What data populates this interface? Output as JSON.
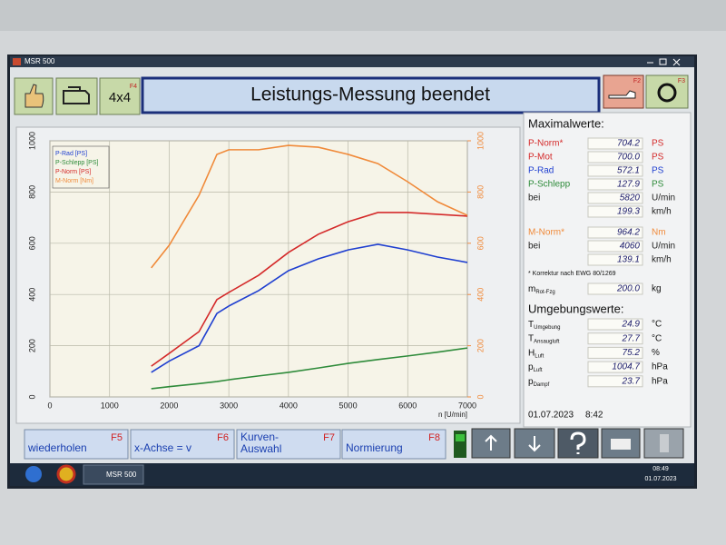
{
  "window": {
    "title": "MSR 500"
  },
  "toolbar": {
    "four_wd": "4x4",
    "four_wd_key": "F4",
    "header": "Leistungs-Messung beendet",
    "left_key": "F2",
    "right_key": "F3"
  },
  "chart_data": {
    "type": "line",
    "x_label": "n [U/min]",
    "x": [
      1700,
      2000,
      2500,
      2800,
      3000,
      3500,
      4000,
      4500,
      5000,
      5500,
      6000,
      6500,
      7000
    ],
    "series": [
      {
        "name": "P-Rad [PS]",
        "color": "#1f3fd0",
        "values": [
          96,
          140,
          200,
          326,
          355,
          415,
          493,
          539,
          574,
          596,
          574,
          546,
          525
        ]
      },
      {
        "name": "P-Schlepp [PS]",
        "color": "#2e8b3a",
        "values": [
          32,
          40,
          52,
          60,
          67,
          82,
          96,
          113,
          131,
          146,
          160,
          175,
          191
        ]
      },
      {
        "name": "P-Norm [PS]",
        "color": "#d42a2a",
        "values": [
          120,
          170,
          255,
          380,
          408,
          475,
          564,
          635,
          684,
          720,
          720,
          713,
          706
        ]
      },
      {
        "name": "M-Norm [Nm]",
        "color": "#f08a3a",
        "axis": "y2",
        "values": [
          504,
          592,
          787,
          947,
          965,
          965,
          982,
          975,
          947,
          911,
          840,
          762,
          709
        ]
      }
    ],
    "xlim": [
      0,
      7000
    ],
    "xticks": [
      0,
      1000,
      2000,
      3000,
      4000,
      5000,
      6000,
      7000
    ],
    "ylim": [
      0,
      1000
    ],
    "yticks": [
      0,
      200,
      400,
      600,
      800,
      1000
    ],
    "y2lim": [
      0,
      1000
    ],
    "y2ticks": [
      0,
      200,
      400,
      600,
      800,
      1000
    ],
    "y2color": "#f08a3a",
    "grid": true,
    "legend": "upper left"
  },
  "panel": {
    "max_title": "Maximalwerte:",
    "power_rows": [
      {
        "label": "P-Norm*",
        "value": "704.2",
        "unit": "PS",
        "color": "#d42a2a"
      },
      {
        "label": "P-Mot",
        "value": "700.0",
        "unit": "PS",
        "color": "#d42a2a"
      },
      {
        "label": "P-Rad",
        "value": "572.1",
        "unit": "PS",
        "color": "#1f3fd0"
      },
      {
        "label": "P-Schlepp",
        "value": "127.9",
        "unit": "PS",
        "color": "#2e8b3a"
      },
      {
        "label": "bei",
        "value": "5820",
        "unit": "U/min",
        "color": "#222222"
      },
      {
        "value": "199.3",
        "unit": "km/h",
        "color": "#222222"
      }
    ],
    "torque_rows": [
      {
        "label": "M-Norm*",
        "value": "964.2",
        "unit": "Nm",
        "color": "#f08a3a"
      },
      {
        "label": "bei",
        "value": "4060",
        "unit": "U/min",
        "color": "#222222"
      },
      {
        "value": "139.1",
        "unit": "km/h",
        "color": "#222222"
      }
    ],
    "note": "* Korrektur nach EWG 80/1269",
    "mass": {
      "main": "m",
      "sub": "Rot-Fzg",
      "value": "200.0",
      "unit": "kg"
    },
    "env_title": "Umgebungswerte:",
    "env_rows": [
      {
        "main": "T",
        "sub": "Umgebung",
        "value": "24.9",
        "unit": "°C"
      },
      {
        "main": "T",
        "sub": "Ansaugluft",
        "value": "27.7",
        "unit": "°C"
      },
      {
        "main": "H",
        "sub": "Luft",
        "value": "75.2",
        "unit": "%"
      },
      {
        "main": "p",
        "sub": "Luft",
        "value": "1004.7",
        "unit": "hPa"
      },
      {
        "main": "p",
        "sub": "Dampf",
        "value": "23.7",
        "unit": "hPa"
      }
    ],
    "date": "01.07.2023",
    "time": "8:42"
  },
  "function_keys": [
    {
      "label": "wiederholen",
      "key": "F5"
    },
    {
      "label": "x-Achse = v",
      "key": "F6"
    },
    {
      "label": "Kurven-",
      "label2": "Auswahl",
      "key": "F7"
    },
    {
      "label": "Normierung",
      "key": "F8"
    }
  ],
  "taskbar": {
    "app": "MSR 500",
    "time": "08:49",
    "date": "01.07.2023"
  }
}
